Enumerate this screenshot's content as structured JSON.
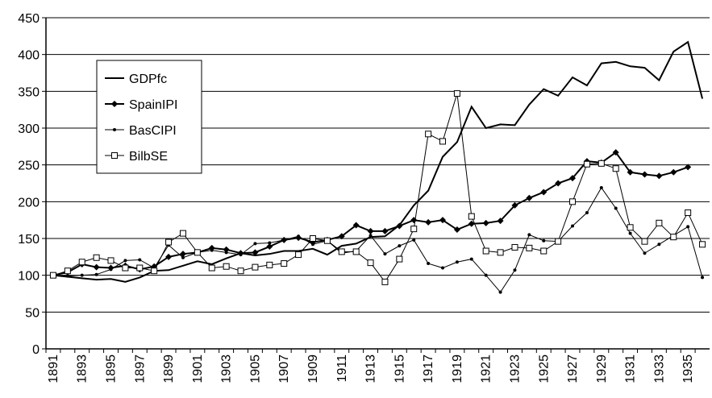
{
  "chart_data": {
    "type": "line",
    "categories": [
      "1891",
      null,
      "1893",
      null,
      "1895",
      null,
      "1897",
      null,
      "1899",
      null,
      "1901",
      null,
      "1903",
      null,
      "1905",
      null,
      "1907",
      null,
      "1909",
      null,
      "1911",
      null,
      "1913",
      null,
      "1915",
      null,
      "1917",
      null,
      "1919",
      null,
      "1921",
      null,
      "1923",
      null,
      "1925",
      null,
      "1927",
      null,
      "1929",
      null,
      "1931",
      null,
      "1933",
      null,
      "1935",
      null
    ],
    "series": [
      {
        "name": "GDPfc",
        "color": "#000000",
        "marker": "none",
        "values": [
          100,
          98,
          96,
          94,
          95,
          91,
          97,
          106,
          107,
          113,
          119,
          115,
          123,
          130,
          127,
          129,
          133,
          133,
          136,
          128,
          140,
          143,
          152,
          153,
          168,
          195,
          215,
          261,
          281,
          329,
          300,
          305,
          304,
          332,
          353,
          344,
          369,
          358,
          388,
          390,
          384,
          382,
          365,
          404,
          417,
          340
        ]
      },
      {
        "name": "SpainIPI",
        "color": "#000000",
        "marker": "diamond",
        "values": [
          100,
          104,
          115,
          111,
          110,
          113,
          108,
          112,
          125,
          129,
          131,
          137,
          135,
          130,
          131,
          139,
          148,
          151,
          145,
          148,
          153,
          168,
          160,
          160,
          167,
          175,
          172,
          175,
          162,
          170,
          171,
          174,
          195,
          205,
          213,
          225,
          232,
          255,
          253,
          267,
          240,
          237,
          235,
          240,
          247,
          null
        ]
      },
      {
        "name": "BasCIPI",
        "color": "#000000",
        "marker": "dot",
        "values": [
          100,
          99,
          100,
          101,
          108,
          120,
          121,
          110,
          141,
          124,
          131,
          134,
          131,
          128,
          143,
          144,
          148,
          153,
          142,
          147,
          130,
          133,
          154,
          129,
          140,
          148,
          116,
          110,
          118,
          122,
          100,
          77,
          107,
          155,
          147,
          146,
          167,
          185,
          219,
          191,
          157,
          130,
          142,
          154,
          166,
          97
        ]
      },
      {
        "name": "BilbSE",
        "color": "#000000",
        "marker": "square",
        "values": [
          100,
          106,
          118,
          124,
          120,
          110,
          110,
          106,
          145,
          157,
          131,
          110,
          112,
          106,
          111,
          114,
          116,
          128,
          150,
          147,
          132,
          132,
          117,
          91,
          122,
          163,
          292,
          282,
          347,
          180,
          133,
          131,
          138,
          137,
          133,
          146,
          200,
          251,
          252,
          245,
          165,
          146,
          171,
          152,
          185,
          142
        ]
      }
    ],
    "ylim": [
      0,
      450
    ],
    "yticks": [
      0,
      50,
      100,
      150,
      200,
      250,
      300,
      350,
      400,
      450
    ],
    "grid": true,
    "legend": "upper-left"
  }
}
